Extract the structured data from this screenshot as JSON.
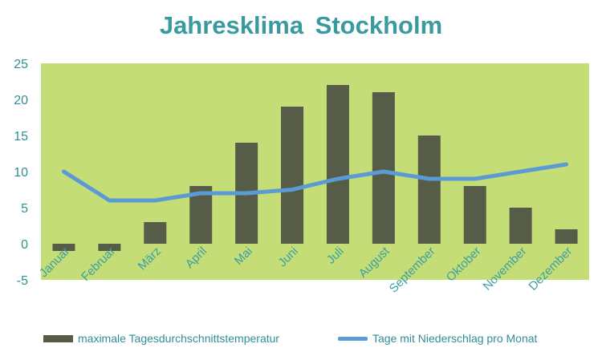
{
  "chart_data": {
    "type": "bar+line",
    "title": "Jahresklima  Stockholm",
    "categories": [
      "Januar",
      "Februar",
      "März",
      "April",
      "Mai",
      "Juni",
      "Juli",
      "August",
      "September",
      "Oktober",
      "November",
      "Dezember"
    ],
    "ylim": [
      -5,
      25
    ],
    "yticks": [
      -5,
      0,
      5,
      10,
      15,
      20,
      25
    ],
    "grid": false,
    "legend_position": "bottom",
    "series": [
      {
        "name": "maximale Tagesdurchschnittstemperatur",
        "type": "bar",
        "values": [
          -1,
          -1,
          3,
          8,
          14,
          19,
          22,
          21,
          15,
          8,
          5,
          2
        ]
      },
      {
        "name": "Tage mit Niederschlag pro Monat",
        "type": "line",
        "values": [
          10,
          6,
          6,
          7,
          7,
          7.5,
          9,
          10,
          9,
          9,
          10,
          11
        ]
      }
    ]
  },
  "colors": {
    "plot_background": "#c5dd76",
    "bar": "#565c48",
    "line": "#5b9bd5",
    "title": "#3a9a9f",
    "axis_text": "#2f8f95"
  }
}
